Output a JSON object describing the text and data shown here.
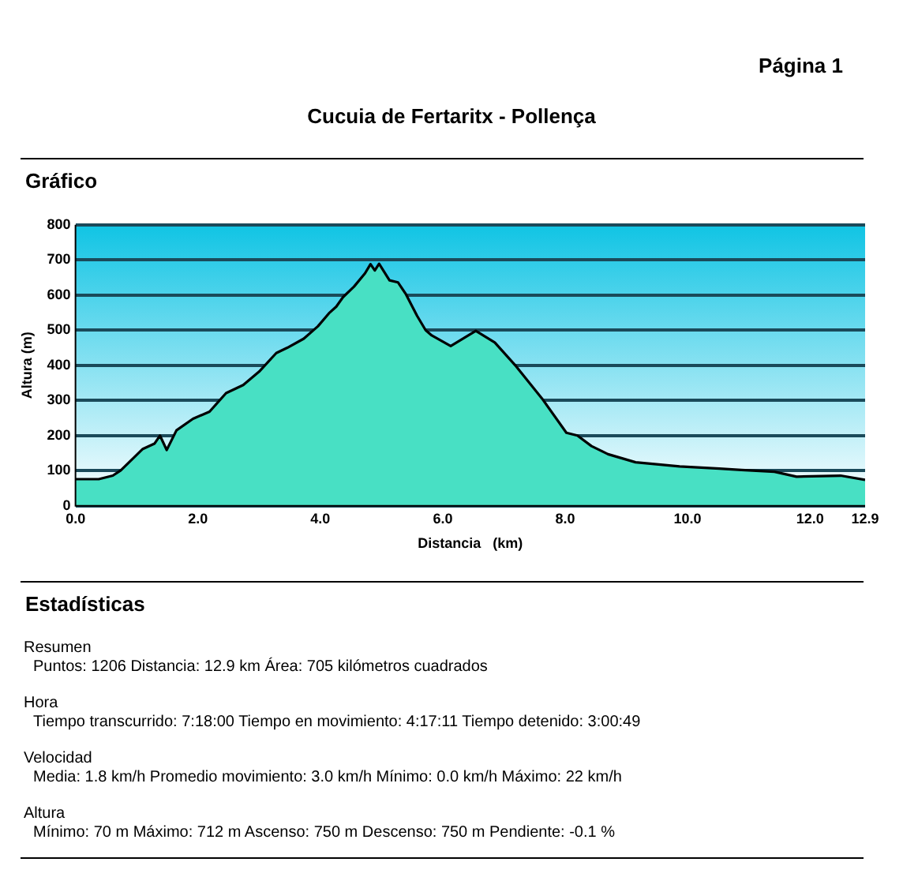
{
  "chart_data": {
    "type": "area",
    "title": "Cucuia de Fertaritx - Pollença",
    "xlabel": "Distancia   (km)",
    "ylabel": "Altura (m)",
    "x": [
      0,
      0.38,
      0.61,
      0.74,
      1.1,
      1.29,
      1.38,
      1.49,
      1.65,
      1.92,
      2.19,
      2.46,
      2.74,
      3.0,
      3.28,
      3.46,
      3.73,
      3.96,
      4.14,
      4.26,
      4.37,
      4.55,
      4.73,
      4.82,
      4.89,
      4.96,
      5.13,
      5.27,
      5.4,
      5.58,
      5.72,
      5.82,
      6.13,
      6.54,
      6.85,
      7.2,
      7.62,
      8.02,
      8.2,
      8.43,
      8.7,
      9.15,
      9.87,
      10.52,
      10.88,
      11.42,
      11.78,
      12.5,
      12.9
    ],
    "series": [
      {
        "color": "#48e0c4",
        "values": [
          76,
          76,
          86,
          101,
          162,
          177,
          200,
          159,
          215,
          248,
          268,
          321,
          344,
          382,
          435,
          450,
          476,
          511,
          548,
          567,
          594,
          624,
          662,
          688,
          670,
          689,
          642,
          636,
          602,
          541,
          500,
          485,
          455,
          498,
          465,
          397,
          306,
          208,
          200,
          170,
          147,
          124,
          112,
          106,
          102,
          97,
          83,
          86,
          74
        ]
      }
    ],
    "xlim": [
      0,
      12.9
    ],
    "xticks": [
      {
        "value": 0,
        "label": "0.0"
      },
      {
        "value": 2,
        "label": "2.0"
      },
      {
        "value": 4,
        "label": "4.0"
      },
      {
        "value": 6,
        "label": "6.0"
      },
      {
        "value": 8,
        "label": "8.0"
      },
      {
        "value": 10,
        "label": "10.0"
      },
      {
        "value": 12,
        "label": "12.0"
      },
      12.9
    ],
    "ylim": [
      0,
      800
    ],
    "yticks": [
      0,
      100,
      200,
      300,
      400,
      500,
      600,
      700,
      800
    ],
    "grid": "y",
    "legend": false,
    "marker": "none",
    "line_style": "solid",
    "annotations": [
      "Página 1",
      "Gráfico",
      "Estadísticas",
      "Resumen",
      "Puntos: 1206  Distancia: 12.9 km  Área: 705 kilómetros cuadrados",
      "Hora",
      "Tiempo transcurrido: 7:18:00  Tiempo en movimiento: 4:17:11  Tiempo detenido: 3:00:49",
      "Velocidad",
      "Media: 1.8 km/h  Promedio movimiento: 3.0 km/h  Mínimo: 0.0 km/h  Máximo: 22 km/h",
      "Altura",
      "Mínimo: 70 m  Máximo: 712 m  Ascenso: 750 m  Descenso: 750 m  Pendiente: -0.1 %"
    ]
  }
}
